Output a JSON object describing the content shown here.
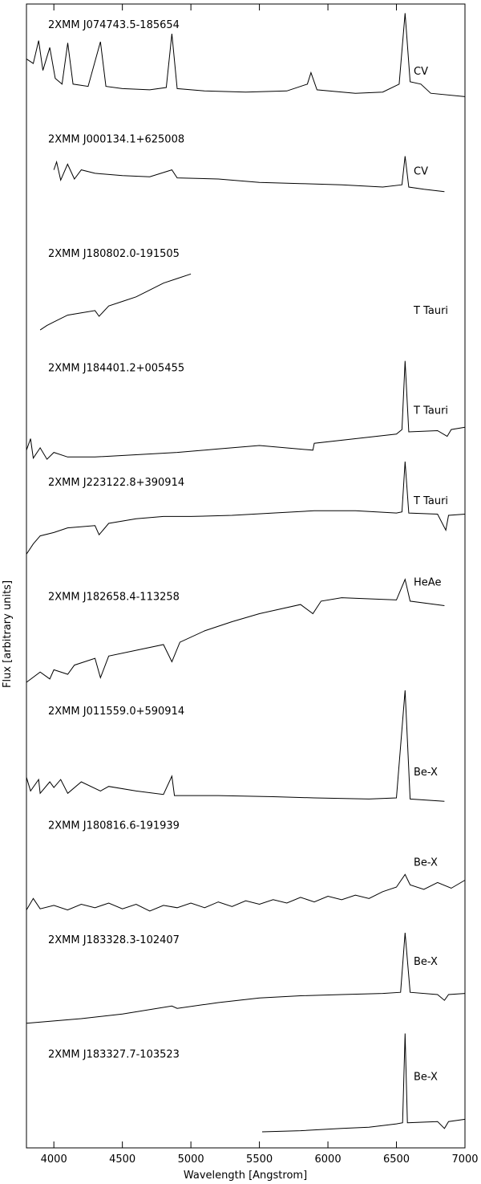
{
  "chart_data": {
    "type": "line",
    "xlabel": "Wavelength [Angstrom]",
    "ylabel": "Flux [arbitrary units]",
    "xlim": [
      3800,
      7000
    ],
    "xticks": [
      4000,
      4500,
      5000,
      5500,
      6000,
      6500,
      7000
    ],
    "ylim": [
      0,
      1
    ],
    "color": "#000000",
    "series": [
      {
        "name": "2XMM J074743.5-185654",
        "label": "CV",
        "x": [
          3800,
          3850,
          3889,
          3920,
          3970,
          4010,
          4060,
          4101,
          4140,
          4250,
          4340,
          4380,
          4500,
          4700,
          4820,
          4861,
          4900,
          5100,
          5400,
          5700,
          5850,
          5876,
          5920,
          6200,
          6400,
          6520,
          6563,
          6600,
          6678,
          6750,
          7000
        ],
        "values": [
          0.52,
          0.48,
          0.68,
          0.42,
          0.62,
          0.35,
          0.3,
          0.66,
          0.3,
          0.28,
          0.67,
          0.28,
          0.26,
          0.25,
          0.27,
          0.74,
          0.26,
          0.24,
          0.23,
          0.24,
          0.3,
          0.4,
          0.25,
          0.22,
          0.23,
          0.3,
          0.92,
          0.32,
          0.3,
          0.22,
          0.19
        ]
      },
      {
        "name": "2XMM J000134.1+625008",
        "label": "CV",
        "x": [
          4000,
          4020,
          4050,
          4100,
          4150,
          4200,
          4300,
          4500,
          4700,
          4861,
          4900,
          5200,
          5500,
          5800,
          6100,
          6400,
          6540,
          6563,
          6590,
          6700,
          6850
        ],
        "values": [
          0.55,
          0.62,
          0.46,
          0.6,
          0.47,
          0.55,
          0.52,
          0.5,
          0.49,
          0.55,
          0.48,
          0.47,
          0.44,
          0.43,
          0.42,
          0.4,
          0.42,
          0.67,
          0.4,
          0.38,
          0.36
        ]
      },
      {
        "name": "2XMM J180802.0-191505",
        "label": "T Tauri",
        "x": [
          3900,
          3950,
          4000,
          4100,
          4200,
          4300,
          4330,
          4400,
          4500,
          4600,
          4700,
          4800,
          4900,
          5000
        ],
        "values": [
          0.15,
          0.19,
          0.22,
          0.28,
          0.3,
          0.32,
          0.27,
          0.36,
          0.4,
          0.44,
          0.5,
          0.56,
          0.6,
          0.64
        ]
      },
      {
        "name": "2XMM J184401.2+005455",
        "label": "T Tauri",
        "x": [
          3800,
          3830,
          3850,
          3900,
          3950,
          4000,
          4100,
          4300,
          4600,
          4900,
          5200,
          5500,
          5890,
          5900,
          6200,
          6500,
          6540,
          6563,
          6590,
          6800,
          6870,
          6900,
          7000
        ],
        "values": [
          0.1,
          0.2,
          0.03,
          0.12,
          0.02,
          0.08,
          0.04,
          0.04,
          0.06,
          0.08,
          0.11,
          0.14,
          0.1,
          0.16,
          0.2,
          0.24,
          0.28,
          0.88,
          0.26,
          0.27,
          0.22,
          0.28,
          0.3
        ]
      },
      {
        "name": "2XMM J223122.8+390914",
        "label": "T Tauri",
        "x": [
          3800,
          3850,
          3900,
          4000,
          4100,
          4300,
          4330,
          4400,
          4600,
          4800,
          5000,
          5300,
          5600,
          5900,
          6200,
          6500,
          6540,
          6563,
          6590,
          6800,
          6860,
          6880,
          7000
        ],
        "values": [
          0.19,
          0.28,
          0.35,
          0.38,
          0.42,
          0.44,
          0.36,
          0.46,
          0.5,
          0.52,
          0.52,
          0.53,
          0.55,
          0.57,
          0.57,
          0.55,
          0.56,
          1.0,
          0.55,
          0.54,
          0.4,
          0.53,
          0.54
        ]
      },
      {
        "name": "2XMM J182658.4-113258",
        "label": "HeAe",
        "x": [
          3800,
          3900,
          3970,
          4000,
          4101,
          4150,
          4300,
          4340,
          4400,
          4600,
          4800,
          4861,
          4920,
          5100,
          5300,
          5500,
          5800,
          5890,
          5950,
          6100,
          6300,
          6500,
          6563,
          6600,
          6850
        ],
        "values": [
          0.07,
          0.16,
          0.1,
          0.18,
          0.14,
          0.22,
          0.28,
          0.11,
          0.3,
          0.35,
          0.4,
          0.25,
          0.42,
          0.52,
          0.6,
          0.67,
          0.75,
          0.67,
          0.78,
          0.81,
          0.8,
          0.79,
          0.97,
          0.78,
          0.74
        ]
      },
      {
        "name": "2XMM J011559.0+590914",
        "label": "Be-X",
        "x": [
          3800,
          3830,
          3889,
          3900,
          3970,
          4000,
          4050,
          4101,
          4200,
          4340,
          4400,
          4600,
          4800,
          4861,
          4880,
          5200,
          5600,
          5900,
          6300,
          6500,
          6563,
          6600,
          6850
        ],
        "values": [
          0.24,
          0.12,
          0.22,
          0.1,
          0.2,
          0.15,
          0.22,
          0.1,
          0.2,
          0.12,
          0.16,
          0.12,
          0.09,
          0.25,
          0.08,
          0.08,
          0.07,
          0.06,
          0.05,
          0.06,
          1.0,
          0.05,
          0.03
        ]
      },
      {
        "name": "2XMM J180816.6-191939",
        "label": "Be-X",
        "x": [
          3800,
          3850,
          3900,
          4000,
          4100,
          4200,
          4300,
          4400,
          4500,
          4600,
          4700,
          4800,
          4900,
          5000,
          5100,
          5200,
          5300,
          5400,
          5500,
          5600,
          5700,
          5800,
          5900,
          6000,
          6100,
          6200,
          6300,
          6400,
          6500,
          6563,
          6600,
          6700,
          6800,
          6900,
          7000
        ],
        "values": [
          0.08,
          0.18,
          0.09,
          0.12,
          0.08,
          0.13,
          0.1,
          0.14,
          0.09,
          0.13,
          0.07,
          0.12,
          0.1,
          0.14,
          0.1,
          0.15,
          0.11,
          0.16,
          0.13,
          0.17,
          0.14,
          0.19,
          0.15,
          0.2,
          0.17,
          0.21,
          0.18,
          0.24,
          0.28,
          0.39,
          0.3,
          0.26,
          0.32,
          0.27,
          0.34
        ]
      },
      {
        "name": "2XMM J183328.3-102407",
        "label": "Be-X",
        "x": [
          3800,
          4200,
          4500,
          4861,
          4900,
          5200,
          5500,
          5800,
          6100,
          6400,
          6530,
          6563,
          6600,
          6800,
          6850,
          6880,
          7000
        ],
        "values": [
          0.09,
          0.13,
          0.17,
          0.24,
          0.22,
          0.27,
          0.31,
          0.33,
          0.34,
          0.35,
          0.36,
          0.88,
          0.36,
          0.34,
          0.29,
          0.34,
          0.35
        ]
      },
      {
        "name": "2XMM J183327.7-103523",
        "label": "Be-X",
        "x": [
          5520,
          5800,
          6100,
          6300,
          6500,
          6545,
          6563,
          6580,
          6800,
          6850,
          6880,
          7000
        ],
        "values": [
          0.14,
          0.15,
          0.17,
          0.18,
          0.21,
          0.22,
          1.0,
          0.22,
          0.23,
          0.17,
          0.23,
          0.25
        ]
      }
    ]
  }
}
